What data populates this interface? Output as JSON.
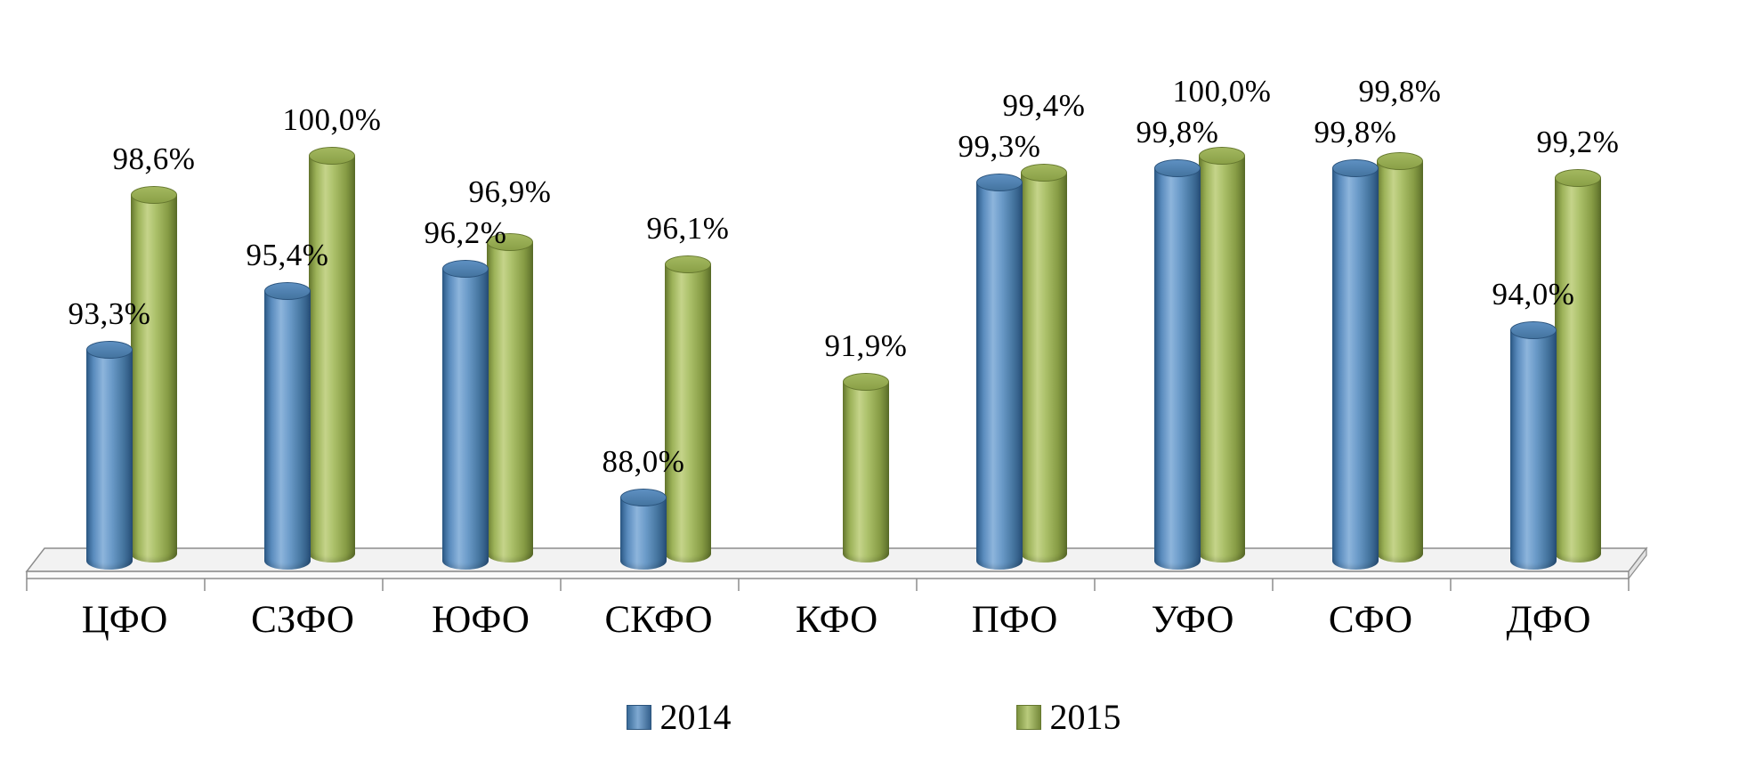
{
  "chart_data": {
    "type": "bar",
    "subtype": "3d-cylinder-column",
    "title": "",
    "xlabel": "",
    "ylabel": "",
    "grid": false,
    "legend_position": "bottom",
    "value_axis": {
      "implied_min": 85.4,
      "max": 100,
      "unit": "%"
    },
    "categories": [
      "ЦФО",
      "СЗФО",
      "ЮФО",
      "СКФО",
      "КФО",
      "ПФО",
      "УФО",
      "СФО",
      "ДФО"
    ],
    "series": [
      {
        "name": "2014",
        "color": "#4F81BD",
        "values": [
          93.3,
          95.4,
          96.2,
          88.0,
          null,
          99.3,
          99.8,
          99.8,
          94.0
        ],
        "labels": [
          "93,3%",
          "95,4%",
          "96,2%",
          "88,0%",
          null,
          "99,3%",
          "99,8%",
          "99,8%",
          "94,0%"
        ]
      },
      {
        "name": "2015",
        "color": "#9BBB59",
        "values": [
          98.6,
          100.0,
          96.9,
          96.1,
          91.9,
          99.4,
          100.0,
          99.8,
          99.2
        ],
        "labels": [
          "98,6%",
          "100,0%",
          "96,9%",
          "96,1%",
          "91,9%",
          "99,4%",
          "100,0%",
          "99,8%",
          "99,2%"
        ]
      }
    ]
  },
  "colors": {
    "background": "#ffffff",
    "floor_top": "#f2f2f2",
    "floor_front": "#fafafa",
    "floor_stroke": "#8c8c8c",
    "label_text": "#000000"
  }
}
